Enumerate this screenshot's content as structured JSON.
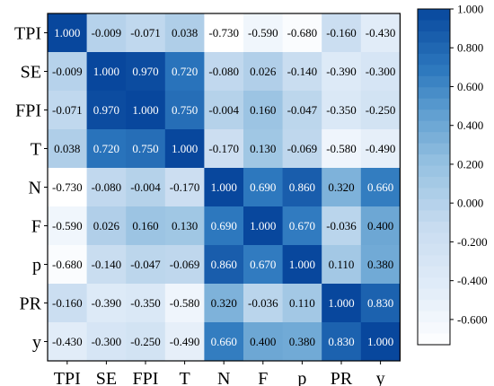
{
  "chart_data": {
    "type": "heatmap",
    "title": "",
    "row_labels": [
      "TPI",
      "SE",
      "FPI",
      "T",
      "N",
      "F",
      "p",
      "PR",
      "y"
    ],
    "col_labels": [
      "TPI",
      "SE",
      "FPI",
      "T",
      "N",
      "F",
      "p",
      "PR",
      "y"
    ],
    "cell_text": [
      [
        "1.000",
        "-0.009",
        "-0.071",
        "0.038",
        "-0.730",
        "-0.590",
        "-0.680",
        "-0.160",
        "-0.430"
      ],
      [
        "-0.009",
        "1.000",
        "0.970",
        "0.720",
        "-0.080",
        "0.026",
        "-0.140",
        "-0.390",
        "-0.300"
      ],
      [
        "-0.071",
        "0.970",
        "1.000",
        "0.750",
        "-0.004",
        "0.160",
        "-0.047",
        "-0.350",
        "-0.250"
      ],
      [
        "0.038",
        "0.720",
        "0.750",
        "1.000",
        "-0.170",
        "0.130",
        "-0.069",
        "-0.580",
        "-0.490"
      ],
      [
        "-0.730",
        "-0.080",
        "-0.004",
        "-0.170",
        "1.000",
        "0.690",
        "0.860",
        "0.320",
        "0.660"
      ],
      [
        "-0.590",
        "0.026",
        "0.160",
        "0.130",
        "0.690",
        "1.000",
        "0.670",
        "-0.036",
        "0.400"
      ],
      [
        "-0.680",
        "-0.140",
        "-0.047",
        "-0.069",
        "0.860",
        "0.670",
        "1.000",
        "0.110",
        "0.380"
      ],
      [
        "-0.160",
        "-0.390",
        "-0.350",
        "-0.580",
        "0.320",
        "-0.036",
        "0.110",
        "1.000",
        "0.830"
      ],
      [
        "-0.430",
        "-0.300",
        "-0.250",
        "-0.490",
        "0.660",
        "0.400",
        "0.380",
        "0.830",
        "1.000"
      ]
    ],
    "colorbar": {
      "min": -0.73,
      "max": 1.0,
      "ticks": [
        "1.000",
        "0.800",
        "0.600",
        "0.400",
        "0.200",
        "0.000",
        "-0.200",
        "-0.400",
        "-0.600"
      ],
      "low_color": "#ffffff",
      "high_color": "#08479d"
    },
    "grid": false,
    "legend_position": "right"
  }
}
